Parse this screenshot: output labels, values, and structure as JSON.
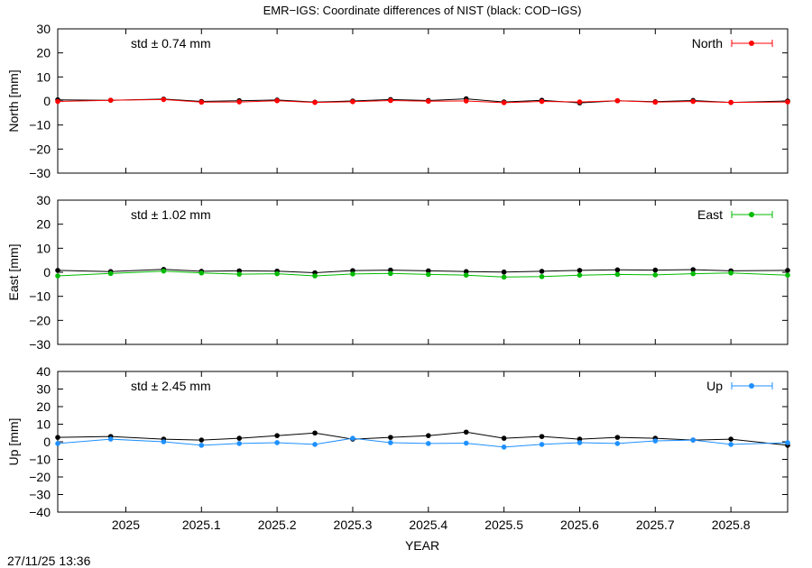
{
  "title": "EMR−IGS: Coordinate differences of NIST (black: COD−IGS)",
  "timestamp": "27/11/25 13:36",
  "chart_data": {
    "type": "scatter",
    "xlabel": "YEAR",
    "xlim": [
      2024.91,
      2025.875
    ],
    "xticks": [
      2025,
      2025.1,
      2025.2,
      2025.3,
      2025.4,
      2025.5,
      2025.6,
      2025.7,
      2025.8
    ],
    "xtick_labels": [
      "2025",
      "2025.1",
      "2025.2",
      "2025.3",
      "2025.4",
      "2025.5",
      "2025.6",
      "2025.7",
      "2025.8"
    ],
    "grid": false,
    "panels": [
      {
        "id": "north",
        "ylabel": "North [mm]",
        "ylim": [
          -30,
          30
        ],
        "yticks": [
          -30,
          -20,
          -10,
          0,
          10,
          20,
          30
        ],
        "ytick_labels": [
          "−30",
          "−20",
          "−10",
          "0",
          "10",
          "20",
          "30"
        ],
        "std_text": "std ± 0.74 mm",
        "legend": "North",
        "legend_placement": "top-right",
        "series": [
          {
            "color": "#000000",
            "name": "COD−IGS",
            "x": [
              2024.91,
              2024.98,
              2025.05,
              2025.1,
              2025.15,
              2025.2,
              2025.25,
              2025.3,
              2025.35,
              2025.4,
              2025.45,
              2025.5,
              2025.55,
              2025.6,
              2025.65,
              2025.7,
              2025.75,
              2025.8,
              2025.875
            ],
            "y": [
              0.5,
              0.3,
              0.8,
              -0.2,
              0.1,
              0.4,
              -0.5,
              0.0,
              0.6,
              0.2,
              0.9,
              -0.4,
              0.3,
              -0.8,
              0.1,
              -0.3,
              0.2,
              -0.6,
              0.0
            ]
          },
          {
            "color": "#ff0000",
            "name": "EMR−IGS",
            "x": [
              2024.91,
              2024.98,
              2025.05,
              2025.1,
              2025.15,
              2025.2,
              2025.25,
              2025.3,
              2025.35,
              2025.4,
              2025.45,
              2025.5,
              2025.55,
              2025.6,
              2025.65,
              2025.7,
              2025.75,
              2025.8,
              2025.875
            ],
            "y": [
              -0.2,
              0.3,
              0.6,
              -0.5,
              -0.4,
              0.1,
              -0.6,
              -0.3,
              0.2,
              -0.1,
              0.0,
              -0.7,
              -0.2,
              -0.4,
              0.1,
              -0.5,
              -0.2,
              -0.6,
              -0.4
            ]
          }
        ]
      },
      {
        "id": "east",
        "ylabel": "East [mm]",
        "ylim": [
          -30,
          30
        ],
        "yticks": [
          -30,
          -20,
          -10,
          0,
          10,
          20,
          30
        ],
        "ytick_labels": [
          "−30",
          "−20",
          "−10",
          "0",
          "10",
          "20",
          "30"
        ],
        "std_text": "std ± 1.02 mm",
        "legend": "East",
        "legend_placement": "top-right",
        "series": [
          {
            "color": "#000000",
            "name": "COD−IGS",
            "x": [
              2024.91,
              2024.98,
              2025.05,
              2025.1,
              2025.15,
              2025.2,
              2025.25,
              2025.3,
              2025.35,
              2025.4,
              2025.45,
              2025.5,
              2025.55,
              2025.6,
              2025.65,
              2025.7,
              2025.75,
              2025.8,
              2025.875
            ],
            "y": [
              0.8,
              0.3,
              1.2,
              0.4,
              0.6,
              0.5,
              -0.2,
              0.7,
              0.9,
              0.6,
              0.3,
              0.1,
              0.4,
              0.8,
              1.0,
              0.9,
              1.1,
              0.6,
              0.8
            ]
          },
          {
            "color": "#00bb00",
            "name": "EMR−IGS",
            "x": [
              2024.91,
              2024.98,
              2025.05,
              2025.1,
              2025.15,
              2025.2,
              2025.25,
              2025.3,
              2025.35,
              2025.4,
              2025.45,
              2025.5,
              2025.55,
              2025.6,
              2025.65,
              2025.7,
              2025.75,
              2025.8,
              2025.875
            ],
            "y": [
              -1.5,
              -0.5,
              0.5,
              -0.3,
              -0.8,
              -0.6,
              -1.5,
              -0.7,
              -0.5,
              -0.9,
              -1.2,
              -2.0,
              -1.8,
              -1.2,
              -0.9,
              -1.1,
              -0.6,
              -0.3,
              -1.2
            ]
          }
        ]
      },
      {
        "id": "up",
        "ylabel": "Up [mm]",
        "ylim": [
          -40,
          40
        ],
        "yticks": [
          -40,
          -30,
          -20,
          -10,
          0,
          10,
          20,
          30,
          40
        ],
        "ytick_labels": [
          "−40",
          "−30",
          "−20",
          "−10",
          "0",
          "10",
          "20",
          "30",
          "40"
        ],
        "std_text": "std ± 2.45 mm",
        "legend": "Up",
        "legend_placement": "top-right",
        "series": [
          {
            "color": "#000000",
            "name": "COD−IGS",
            "x": [
              2024.91,
              2024.98,
              2025.05,
              2025.1,
              2025.15,
              2025.2,
              2025.25,
              2025.3,
              2025.35,
              2025.4,
              2025.45,
              2025.5,
              2025.55,
              2025.6,
              2025.65,
              2025.7,
              2025.75,
              2025.8,
              2025.875
            ],
            "y": [
              2.5,
              3.0,
              1.5,
              1.0,
              2.0,
              3.5,
              5.0,
              1.5,
              2.5,
              3.5,
              5.5,
              2.0,
              3.0,
              1.5,
              2.5,
              2.0,
              1.0,
              1.5,
              -2.0
            ]
          },
          {
            "color": "#1e90ff",
            "name": "EMR−IGS",
            "x": [
              2024.91,
              2024.98,
              2025.05,
              2025.1,
              2025.15,
              2025.2,
              2025.25,
              2025.3,
              2025.35,
              2025.4,
              2025.45,
              2025.5,
              2025.55,
              2025.6,
              2025.65,
              2025.7,
              2025.75,
              2025.8,
              2025.875
            ],
            "y": [
              -1.0,
              1.5,
              0.0,
              -2.0,
              -1.0,
              -0.5,
              -1.5,
              2.0,
              -0.5,
              -1.0,
              -0.8,
              -3.0,
              -1.5,
              -0.5,
              -1.0,
              0.5,
              1.0,
              -1.5,
              -0.5
            ]
          }
        ]
      }
    ]
  }
}
